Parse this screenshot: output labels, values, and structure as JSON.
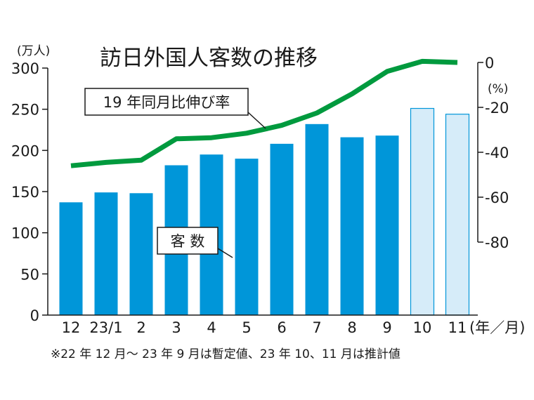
{
  "chart_data": {
    "type": "bar+line",
    "title": "訪日外国人客数の推移",
    "categories": [
      "12",
      "23/1",
      "2",
      "3",
      "4",
      "5",
      "6",
      "7",
      "8",
      "9",
      "10",
      "11"
    ],
    "x_unit_label": "(年／月)",
    "series": [
      {
        "name": "客数",
        "type": "bar",
        "axis": "left",
        "values": [
          137,
          149,
          148,
          182,
          195,
          190,
          208,
          232,
          216,
          218,
          251,
          244
        ],
        "estimated_from": 10,
        "color": "#0096d9",
        "estimated_color": "#d6ecf9"
      },
      {
        "name": "19年同月比伸び率",
        "type": "line",
        "axis": "right",
        "values": [
          -46,
          -44.5,
          -43.5,
          -34,
          -33.5,
          -31.5,
          -28,
          -22.5,
          -14,
          -4,
          0.5,
          0
        ],
        "color": "#009a3e"
      }
    ],
    "left_axis": {
      "unit_label": "(万人)",
      "min": 0,
      "max": 300,
      "ticks": [
        0,
        50,
        100,
        150,
        200,
        250,
        300
      ]
    },
    "right_axis": {
      "unit_label": "(%)",
      "min": -80,
      "max": 0,
      "ticks": [
        "0",
        "-20",
        "-40",
        "-60",
        "-80"
      ]
    },
    "callouts": {
      "line_label": "19 年同月比伸び率",
      "bar_label": "客 数"
    },
    "footnote": "※22 年 12 月～ 23 年 9 月は暫定値、23 年 10、11 月は推計値"
  }
}
